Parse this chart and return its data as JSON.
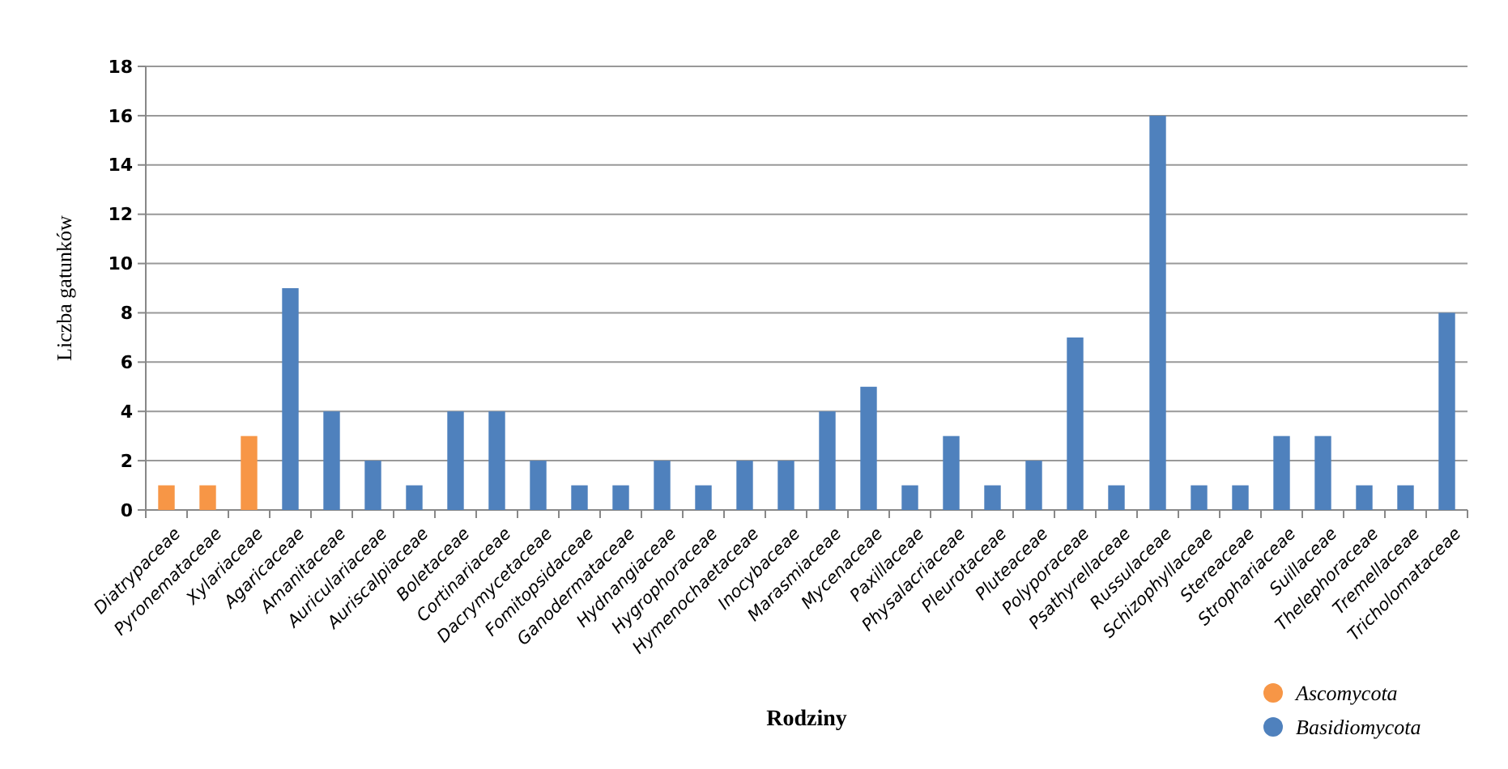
{
  "chart_data": {
    "type": "bar",
    "xlabel": "Rodziny",
    "ylabel": "Liczba gatunków",
    "stacked": true,
    "categories": [
      "Diatrypaceae",
      "Pyronemataceae",
      "Xylariaceae",
      "Agaricaceae",
      "Amanitaceae",
      "Auriculariaceae",
      "Auriscalpiaceae",
      "Boletaceae",
      "Cortinariaceae",
      "Dacrymycetaceae",
      "Fomitopsidaceae",
      "Ganodermataceae",
      "Hydnangiaceae",
      "Hygrophoraceae",
      "Hymenochaetaceae",
      "Inocybaceae",
      "Marasmiaceae",
      "Mycenaceae",
      "Paxillaceae",
      "Physalacriaceae",
      "Pleurotaceae",
      "Pluteaceae",
      "Polyporaceae",
      "Psathyrellaceae",
      "Russulaceae",
      "Schizophyllaceae",
      "Stereaceae",
      "Strophariaceae",
      "Suillaceae",
      "Thelephoraceae",
      "Tremellaceae",
      "Tricholomataceae"
    ],
    "series": [
      {
        "name": "Ascomycota",
        "color": "#f79646",
        "values": [
          1,
          1,
          3,
          null,
          null,
          null,
          null,
          null,
          null,
          null,
          null,
          null,
          null,
          null,
          null,
          null,
          null,
          null,
          null,
          null,
          null,
          null,
          null,
          null,
          null,
          null,
          null,
          null,
          null,
          null,
          null,
          null
        ]
      },
      {
        "name": "Basidiomycota",
        "color": "#4f81bd",
        "values": [
          null,
          null,
          null,
          9,
          4,
          2,
          1,
          4,
          4,
          2,
          1,
          1,
          2,
          1,
          2,
          2,
          4,
          5,
          1,
          3,
          1,
          2,
          7,
          1,
          16,
          1,
          1,
          3,
          3,
          1,
          1,
          8
        ]
      }
    ],
    "ylim": [
      0,
      18
    ],
    "yticks": [
      0,
      2,
      4,
      6,
      8,
      10,
      12,
      14,
      16,
      18
    ],
    "grid": "y",
    "legend": "bottom right"
  }
}
